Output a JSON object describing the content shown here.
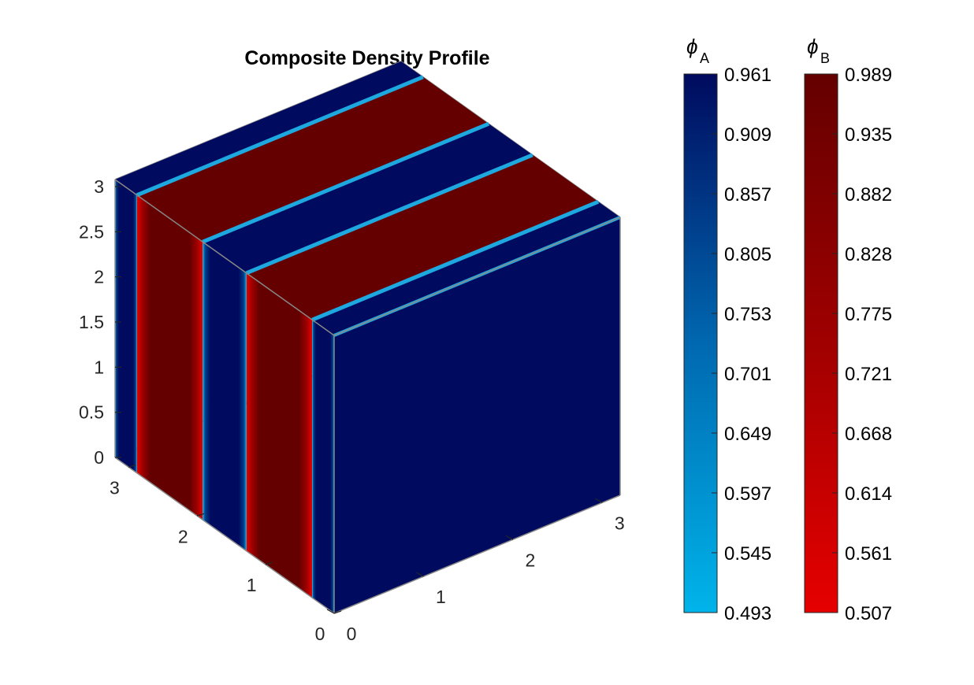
{
  "chart_data": {
    "type": "3d-volume-slices",
    "title": "Composite Density Profile",
    "view": "isometric box",
    "axes": {
      "z": {
        "ticks": [
          "0",
          "0.5",
          "1",
          "1.5",
          "2",
          "2.5",
          "3"
        ],
        "range": [
          0,
          3
        ]
      },
      "left_floor": {
        "ticks": [
          "0",
          "1",
          "2",
          "3"
        ],
        "range": [
          0,
          3.2
        ]
      },
      "right_floor": {
        "ticks": [
          "0",
          "1",
          "2",
          "3"
        ],
        "range": [
          0,
          3.2
        ]
      }
    },
    "stripes": {
      "orientation": "lamellae perpendicular to left-floor axis",
      "pattern": [
        "A",
        "B",
        "A",
        "B",
        "A"
      ],
      "front_face_phase": "A"
    },
    "colorbars": [
      {
        "name": "phi_A",
        "label": "ϕ",
        "subscript": "A",
        "min": 0.493,
        "max": 0.961,
        "ticks": [
          "0.961",
          "0.909",
          "0.857",
          "0.805",
          "0.753",
          "0.701",
          "0.649",
          "0.597",
          "0.545",
          "0.493"
        ],
        "color_low": "#00b4ea",
        "color_mid": "#0068b0",
        "color_high": "#000a5e"
      },
      {
        "name": "phi_B",
        "label": "ϕ",
        "subscript": "B",
        "min": 0.507,
        "max": 0.989,
        "ticks": [
          "0.989",
          "0.935",
          "0.882",
          "0.828",
          "0.775",
          "0.721",
          "0.668",
          "0.614",
          "0.561",
          "0.507"
        ],
        "color_low": "#e60000",
        "color_mid": "#a00000",
        "color_high": "#640000"
      }
    ]
  }
}
